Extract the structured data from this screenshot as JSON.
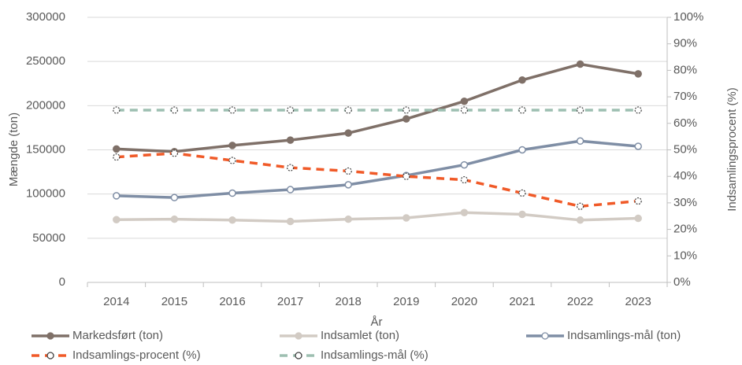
{
  "chart_data": {
    "type": "line",
    "categories": [
      "2014",
      "2015",
      "2016",
      "2017",
      "2018",
      "2019",
      "2020",
      "2021",
      "2022",
      "2023"
    ],
    "xlabel": "År",
    "ylabel": "Mængde (ton)",
    "y2label": "Indsamlingsprocent (%)",
    "ylim": [
      0,
      300000
    ],
    "yticks": [
      0,
      50000,
      100000,
      150000,
      200000,
      250000,
      300000
    ],
    "y2lim": [
      0,
      100
    ],
    "y2ticks": [
      {
        "value": 0,
        "label": "0%"
      },
      {
        "value": 10,
        "label": "10%"
      },
      {
        "value": 20,
        "label": "20%"
      },
      {
        "value": 30,
        "label": "30%"
      },
      {
        "value": 40,
        "label": "40%"
      },
      {
        "value": 50,
        "label": "50%"
      },
      {
        "value": 60,
        "label": "60%"
      },
      {
        "value": 70,
        "label": "70%"
      },
      {
        "value": 80,
        "label": "80%"
      },
      {
        "value": 90,
        "label": "90%"
      },
      {
        "value": 100,
        "label": "100%"
      }
    ],
    "grid": true,
    "legend": "bottom",
    "series": [
      {
        "name": "Markedsført (ton)",
        "color": "#7f7068",
        "marker_fill": "#7f7068",
        "dashed": false,
        "values": [
          151000,
          148000,
          155000,
          161000,
          169000,
          185000,
          205000,
          229000,
          247000,
          236000
        ]
      },
      {
        "name": "Indsamlet (ton)",
        "color": "#d2cbc4",
        "marker_fill": "#d2cbc4",
        "dashed": false,
        "values": [
          71000,
          71500,
          70500,
          69000,
          71500,
          73000,
          79000,
          77000,
          70500,
          72500
        ]
      },
      {
        "name": "Indsamlings-mål (ton)",
        "color": "#7f8ea5",
        "marker_fill": "#ffffff",
        "dashed": false,
        "values": [
          98000,
          96000,
          101000,
          105000,
          110500,
          121000,
          133000,
          150000,
          160000,
          154000
        ]
      },
      {
        "name": "Indsamlings-procent (%)",
        "color": "#f05a28",
        "marker_fill": "#ffffff",
        "dashed": true,
        "axis": "y2",
        "values": [
          47.3,
          48.7,
          46,
          43.3,
          42,
          40,
          38.7,
          33.7,
          28.7,
          30.7
        ]
      },
      {
        "name": "Indsamlings-mål (%)",
        "color": "#9dbfb1",
        "marker_fill": "#ffffff",
        "dashed": true,
        "axis": "y2",
        "values": [
          65,
          65,
          65,
          65,
          65,
          65,
          65,
          65,
          65,
          65
        ]
      }
    ]
  }
}
